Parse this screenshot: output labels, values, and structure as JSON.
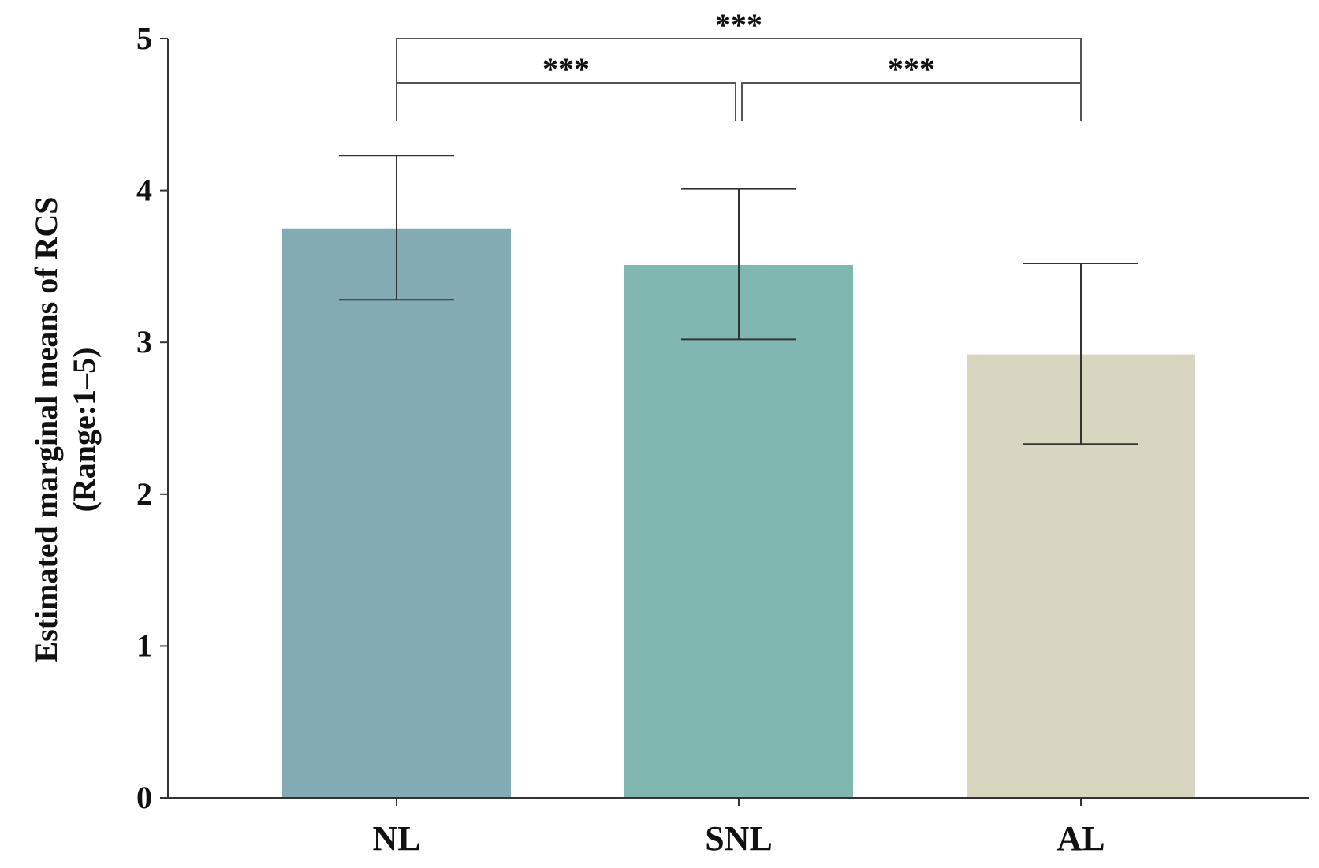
{
  "chart_data": {
    "type": "bar",
    "categories": [
      "NL",
      "SNL",
      "AL"
    ],
    "values": [
      3.75,
      3.51,
      2.92
    ],
    "error_bars": [
      {
        "low": 3.28,
        "high": 4.23
      },
      {
        "low": 3.02,
        "high": 4.01
      },
      {
        "low": 2.33,
        "high": 3.52
      }
    ],
    "colors": [
      "#82abb4",
      "#80b8b1",
      "#d8d5c1"
    ],
    "ylabel_lines": [
      "Estimated marginal means of RCS",
      "(Range:1–5)"
    ],
    "xlabel": "",
    "ylim": [
      0,
      5
    ],
    "yticks": [
      "0",
      "1",
      "2",
      "3",
      "4",
      "5"
    ],
    "significance": [
      {
        "from": 0,
        "to": 1,
        "label": "***"
      },
      {
        "from": 1,
        "to": 2,
        "label": "***"
      },
      {
        "from": 0,
        "to": 2,
        "label": "***"
      }
    ],
    "grid": false,
    "legend": "none"
  }
}
